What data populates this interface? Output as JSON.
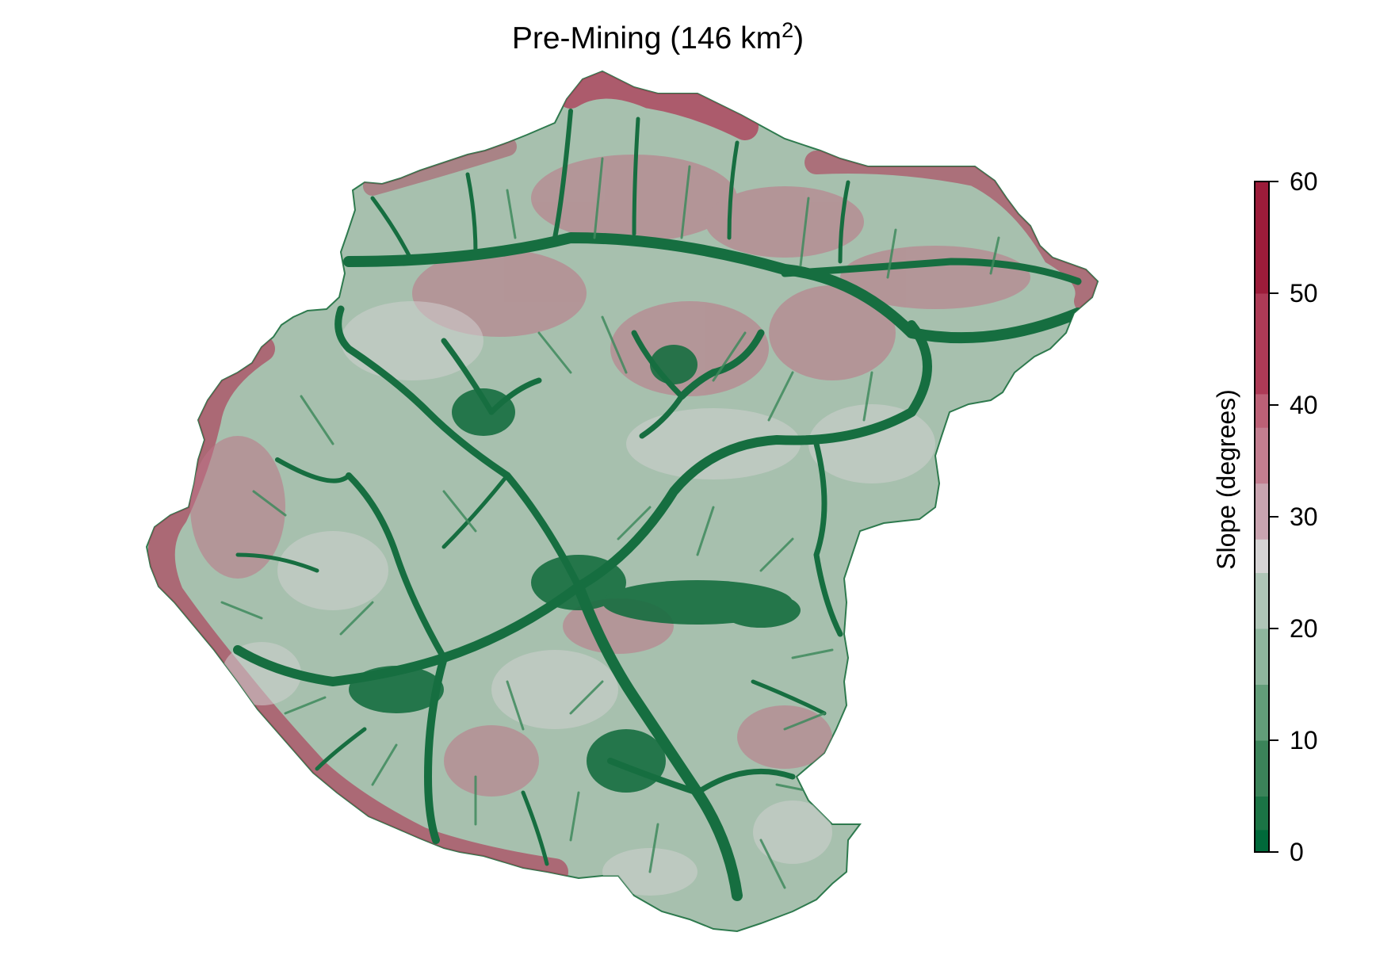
{
  "map": {
    "title_main": "Pre-Mining (146 km",
    "title_sup": "2",
    "title_close": ")"
  },
  "legend": {
    "label": "Slope (degrees)",
    "range": [
      0,
      60
    ],
    "ticks": [
      "0",
      "10",
      "20",
      "30",
      "40",
      "50",
      "60"
    ],
    "tick_values": [
      0,
      10,
      20,
      30,
      40,
      50,
      60
    ],
    "bins": [
      {
        "from": 0,
        "to": 2,
        "color": "#00693a"
      },
      {
        "from": 2,
        "to": 5,
        "color": "#1b7445"
      },
      {
        "from": 5,
        "to": 10,
        "color": "#3b8359"
      },
      {
        "from": 10,
        "to": 15,
        "color": "#629d79"
      },
      {
        "from": 15,
        "to": 20,
        "color": "#8eb59d"
      },
      {
        "from": 20,
        "to": 25,
        "color": "#afc5b7"
      },
      {
        "from": 25,
        "to": 28,
        "color": "#d5d3d4"
      },
      {
        "from": 28,
        "to": 33,
        "color": "#c9a4b0"
      },
      {
        "from": 33,
        "to": 38,
        "color": "#c27d8f"
      },
      {
        "from": 38,
        "to": 41,
        "color": "#bc6076"
      },
      {
        "from": 41,
        "to": 50,
        "color": "#ad3a56"
      },
      {
        "from": 50,
        "to": 60,
        "color": "#9c1c3a"
      }
    ]
  },
  "colors": {
    "valley": "#166e40",
    "valley_light": "#3f8a5d",
    "mid": "#89b298",
    "gray": "#c9cbc9",
    "ridge": "#b44a66",
    "steep": "#9c1c3a"
  }
}
